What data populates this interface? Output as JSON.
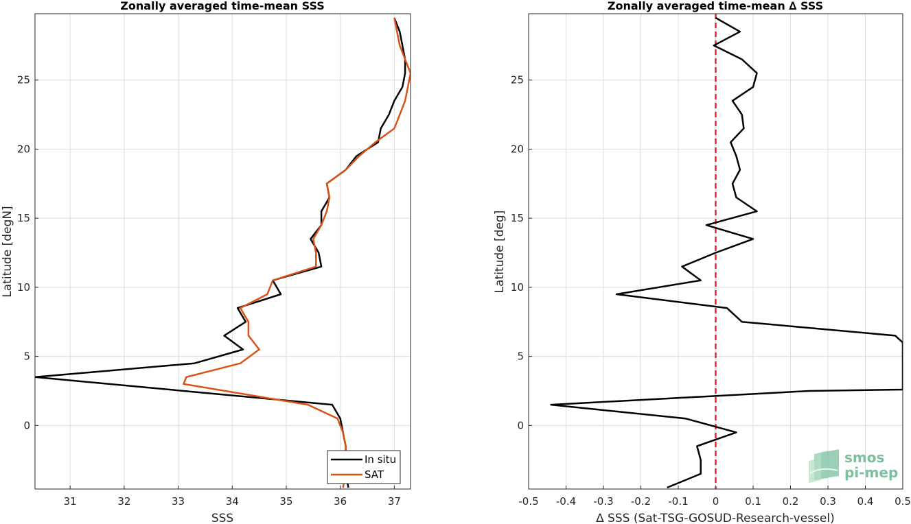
{
  "chart_data": [
    {
      "type": "line",
      "title": "Zonally averaged time-mean SSS",
      "xlabel": "SSS",
      "ylabel": "Latitude [degN]",
      "xlim": [
        30.35,
        37.3
      ],
      "ylim": [
        -4.6,
        29.8
      ],
      "xticks": [
        31,
        32,
        33,
        34,
        35,
        36,
        37
      ],
      "yticks": [
        0,
        5,
        10,
        15,
        20,
        25
      ],
      "grid": true,
      "legend_position": "bottom-right",
      "series": [
        {
          "name": "In situ",
          "color": "#000000",
          "points": [
            [
              36.15,
              -4.5
            ],
            [
              36.1,
              -3.5
            ],
            [
              36.1,
              -2.5
            ],
            [
              36.1,
              -1.5
            ],
            [
              36.05,
              -0.5
            ],
            [
              36.0,
              0.5
            ],
            [
              35.85,
              1.5
            ],
            [
              30.35,
              3.5
            ],
            [
              33.3,
              4.5
            ],
            [
              34.2,
              5.5
            ],
            [
              33.85,
              6.5
            ],
            [
              34.25,
              7.5
            ],
            [
              34.1,
              8.5
            ],
            [
              34.9,
              9.5
            ],
            [
              34.75,
              10.5
            ],
            [
              35.65,
              11.5
            ],
            [
              35.6,
              12.5
            ],
            [
              35.45,
              13.5
            ],
            [
              35.65,
              14.5
            ],
            [
              35.65,
              15.5
            ],
            [
              35.8,
              16.5
            ],
            [
              35.75,
              17.5
            ],
            [
              36.1,
              18.5
            ],
            [
              36.3,
              19.5
            ],
            [
              36.7,
              20.5
            ],
            [
              36.75,
              21.5
            ],
            [
              36.9,
              22.5
            ],
            [
              37.0,
              23.5
            ],
            [
              37.15,
              24.5
            ],
            [
              37.2,
              25.5
            ],
            [
              37.2,
              26.5
            ],
            [
              37.15,
              27.5
            ],
            [
              37.1,
              28.5
            ],
            [
              37.0,
              29.5
            ]
          ]
        },
        {
          "name": "SAT",
          "color": "#d95319",
          "points": [
            [
              36.05,
              -4.5
            ],
            [
              36.1,
              -3.5
            ],
            [
              36.1,
              -2.5
            ],
            [
              36.1,
              -1.5
            ],
            [
              36.05,
              -0.5
            ],
            [
              35.95,
              0.5
            ],
            [
              35.4,
              1.5
            ],
            [
              33.1,
              3.0
            ],
            [
              33.15,
              3.5
            ],
            [
              34.15,
              4.5
            ],
            [
              34.5,
              5.5
            ],
            [
              34.3,
              6.5
            ],
            [
              34.3,
              7.5
            ],
            [
              34.15,
              8.5
            ],
            [
              34.65,
              9.5
            ],
            [
              34.75,
              10.5
            ],
            [
              35.55,
              11.5
            ],
            [
              35.55,
              12.5
            ],
            [
              35.5,
              13.5
            ],
            [
              35.65,
              14.5
            ],
            [
              35.75,
              15.5
            ],
            [
              35.8,
              16.5
            ],
            [
              35.75,
              17.5
            ],
            [
              36.1,
              18.5
            ],
            [
              36.35,
              19.5
            ],
            [
              36.65,
              20.5
            ],
            [
              37.0,
              21.5
            ],
            [
              37.1,
              22.5
            ],
            [
              37.2,
              23.5
            ],
            [
              37.25,
              24.5
            ],
            [
              37.3,
              25.5
            ],
            [
              37.2,
              26.5
            ],
            [
              37.1,
              27.5
            ],
            [
              37.05,
              28.5
            ],
            [
              37.0,
              29.5
            ]
          ]
        }
      ]
    },
    {
      "type": "line",
      "title": "Zonally averaged time-mean ∆ SSS",
      "xlabel": "∆ SSS (Sat-TSG-GOSUD-Research-vessel)",
      "ylabel": "Latitude [deg]",
      "xlim": [
        -0.5,
        0.5
      ],
      "ylim": [
        -4.6,
        29.8
      ],
      "xticks": [
        -0.5,
        -0.4,
        -0.3,
        -0.2,
        -0.1,
        0,
        0.1,
        0.2,
        0.3,
        0.4,
        0.5
      ],
      "xticklabels": [
        "-0.5",
        "-0.4",
        "-0.3",
        "-0.2",
        "-0.1",
        "0",
        "0.1",
        "0.2",
        "0.3",
        "0.4",
        "0.5"
      ],
      "yticks": [
        0,
        5,
        10,
        15,
        20,
        25
      ],
      "grid": true,
      "reference_line": {
        "x": 0,
        "color": "#e8222a",
        "style": "dashed"
      },
      "series": [
        {
          "name": "",
          "color": "#000000",
          "points": [
            [
              -0.13,
              -4.5
            ],
            [
              -0.04,
              -3.5
            ],
            [
              -0.04,
              -2.5
            ],
            [
              -0.05,
              -1.5
            ],
            [
              0.055,
              -0.5
            ],
            [
              -0.08,
              0.5
            ],
            [
              -0.44,
              1.5
            ],
            [
              0.25,
              2.5
            ],
            [
              0.5,
              2.6
            ],
            [
              0.5,
              6.0
            ],
            [
              0.48,
              6.5
            ],
            [
              0.07,
              7.5
            ],
            [
              0.03,
              8.5
            ],
            [
              -0.265,
              9.5
            ],
            [
              -0.04,
              10.5
            ],
            [
              -0.09,
              11.5
            ],
            [
              0.0,
              12.5
            ],
            [
              0.1,
              13.5
            ],
            [
              -0.025,
              14.5
            ],
            [
              0.11,
              15.5
            ],
            [
              0.055,
              16.5
            ],
            [
              0.045,
              17.5
            ],
            [
              0.065,
              18.5
            ],
            [
              0.055,
              19.5
            ],
            [
              0.04,
              20.5
            ],
            [
              0.075,
              21.5
            ],
            [
              0.07,
              22.5
            ],
            [
              0.045,
              23.5
            ],
            [
              0.1,
              24.5
            ],
            [
              0.11,
              25.5
            ],
            [
              0.07,
              26.5
            ],
            [
              -0.005,
              27.5
            ],
            [
              0.065,
              28.5
            ],
            [
              0.0,
              29.5
            ]
          ]
        }
      ]
    }
  ],
  "legend": {
    "items": [
      {
        "label": "In situ",
        "color": "#000000"
      },
      {
        "label": "SAT",
        "color": "#d95319"
      }
    ]
  },
  "logo": {
    "line1": "smos",
    "line2": "pi-mep",
    "color": "#7cc0a0"
  }
}
